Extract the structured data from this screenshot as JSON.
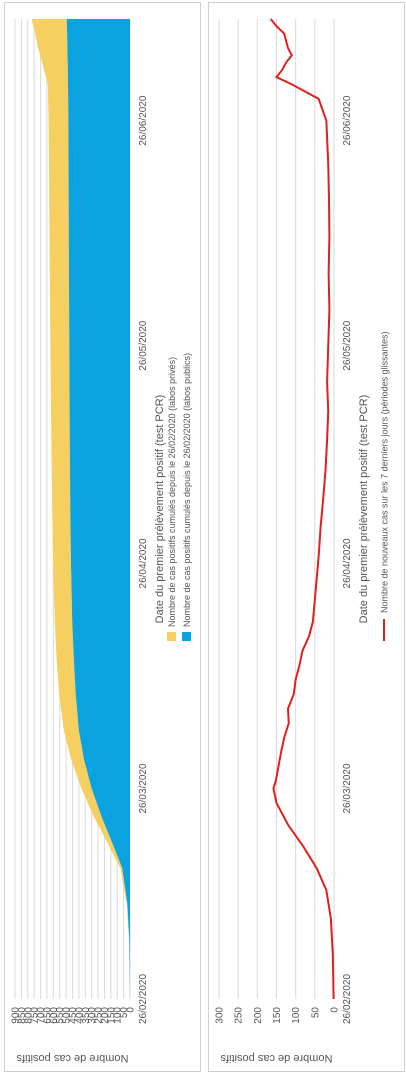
{
  "chart_data": [
    {
      "type": "area",
      "stacked": true,
      "xlabel": "Date du premier prélèvement positif (test PCR)",
      "ylabel": "Nombre de cas positifs",
      "x_ticks": [
        "26/02/2020",
        "26/03/2020",
        "26/04/2020",
        "26/05/2020",
        "26/06/2020"
      ],
      "x_range": [
        "2020-02-26",
        "2020-07-10"
      ],
      "ylim": [
        0,
        900
      ],
      "y_ticks": [
        0,
        50,
        100,
        150,
        200,
        250,
        300,
        350,
        400,
        450,
        500,
        550,
        600,
        650,
        700,
        750,
        800,
        850,
        900
      ],
      "grid": true,
      "legend_position": "bottom",
      "colors": {
        "prives": "#f5cf5f",
        "publics": "#0aa3e0"
      },
      "series": [
        {
          "name": "Nombre de cas positifs cumulés depuis le 26/02/2020 (labos privés)",
          "points": [
            [
              "2020-02-26",
              0
            ],
            [
              "2020-03-05",
              2
            ],
            [
              "2020-03-10",
              5
            ],
            [
              "2020-03-15",
              15
            ],
            [
              "2020-03-19",
              40
            ],
            [
              "2020-03-22",
              60
            ],
            [
              "2020-03-26",
              80
            ],
            [
              "2020-03-30",
              100
            ],
            [
              "2020-04-03",
              118
            ],
            [
              "2020-04-08",
              130
            ],
            [
              "2020-04-13",
              135
            ],
            [
              "2020-04-18",
              137
            ],
            [
              "2020-04-26",
              140
            ],
            [
              "2020-05-05",
              142
            ],
            [
              "2020-05-15",
              145
            ],
            [
              "2020-05-26",
              148
            ],
            [
              "2020-06-05",
              150
            ],
            [
              "2020-06-15",
              152
            ],
            [
              "2020-06-26",
              155
            ],
            [
              "2020-07-01",
              158
            ],
            [
              "2020-07-04",
              200
            ],
            [
              "2020-07-06",
              230
            ],
            [
              "2020-07-08",
              250
            ],
            [
              "2020-07-10",
              275
            ]
          ]
        },
        {
          "name": "Nombre de cas positifs cumulés depuis le 26/02/2020 (labos publics)",
          "points": [
            [
              "2020-02-26",
              0
            ],
            [
              "2020-03-05",
              5
            ],
            [
              "2020-03-10",
              20
            ],
            [
              "2020-03-15",
              60
            ],
            [
              "2020-03-19",
              150
            ],
            [
              "2020-03-22",
              220
            ],
            [
              "2020-03-26",
              300
            ],
            [
              "2020-03-30",
              360
            ],
            [
              "2020-04-03",
              400
            ],
            [
              "2020-04-08",
              425
            ],
            [
              "2020-04-13",
              440
            ],
            [
              "2020-04-18",
              452
            ],
            [
              "2020-04-26",
              462
            ],
            [
              "2020-05-05",
              468
            ],
            [
              "2020-05-15",
              472
            ],
            [
              "2020-05-26",
              475
            ],
            [
              "2020-06-05",
              478
            ],
            [
              "2020-06-15",
              480
            ],
            [
              "2020-06-26",
              482
            ],
            [
              "2020-07-01",
              485
            ],
            [
              "2020-07-04",
              488
            ],
            [
              "2020-07-06",
              490
            ],
            [
              "2020-07-08",
              492
            ],
            [
              "2020-07-10",
              495
            ]
          ]
        }
      ]
    },
    {
      "type": "line",
      "xlabel": "Date du premier prélèvement positif (test PCR)",
      "ylabel": "Nombre de cas positifs",
      "x_ticks": [
        "26/02/2020",
        "26/03/2020",
        "26/04/2020",
        "26/05/2020",
        "26/06/2020"
      ],
      "x_range": [
        "2020-02-26",
        "2020-07-10"
      ],
      "ylim": [
        0,
        300
      ],
      "y_ticks": [
        0,
        50,
        100,
        150,
        200,
        250,
        300
      ],
      "grid": true,
      "legend_position": "bottom",
      "colors": {
        "line": "#e0201c"
      },
      "series": [
        {
          "name": "Nombre de nouveaux cas sur les 7 derniers jours (périodes glissantes)",
          "points": [
            [
              "2020-02-26",
              1
            ],
            [
              "2020-03-03",
              3
            ],
            [
              "2020-03-08",
              8
            ],
            [
              "2020-03-12",
              20
            ],
            [
              "2020-03-15",
              45
            ],
            [
              "2020-03-18",
              80
            ],
            [
              "2020-03-21",
              120
            ],
            [
              "2020-03-24",
              150
            ],
            [
              "2020-03-26",
              158
            ],
            [
              "2020-03-27",
              152
            ],
            [
              "2020-03-29",
              145
            ],
            [
              "2020-03-31",
              138
            ],
            [
              "2020-04-02",
              130
            ],
            [
              "2020-04-04",
              118
            ],
            [
              "2020-04-06",
              120
            ],
            [
              "2020-04-08",
              105
            ],
            [
              "2020-04-10",
              100
            ],
            [
              "2020-04-12",
              90
            ],
            [
              "2020-04-14",
              82
            ],
            [
              "2020-04-16",
              65
            ],
            [
              "2020-04-18",
              55
            ],
            [
              "2020-04-21",
              50
            ],
            [
              "2020-04-24",
              45
            ],
            [
              "2020-04-27",
              40
            ],
            [
              "2020-05-01",
              35
            ],
            [
              "2020-05-05",
              28
            ],
            [
              "2020-05-09",
              22
            ],
            [
              "2020-05-13",
              18
            ],
            [
              "2020-05-17",
              15
            ],
            [
              "2020-05-21",
              18
            ],
            [
              "2020-05-26",
              15
            ],
            [
              "2020-05-31",
              12
            ],
            [
              "2020-06-05",
              14
            ],
            [
              "2020-06-10",
              12
            ],
            [
              "2020-06-15",
              13
            ],
            [
              "2020-06-20",
              15
            ],
            [
              "2020-06-26",
              20
            ],
            [
              "2020-06-29",
              40
            ],
            [
              "2020-07-01",
              110
            ],
            [
              "2020-07-02",
              150
            ],
            [
              "2020-07-03",
              135
            ],
            [
              "2020-07-04",
              125
            ],
            [
              "2020-07-05",
              110
            ],
            [
              "2020-07-06",
              120
            ],
            [
              "2020-07-07",
              125
            ],
            [
              "2020-07-08",
              130
            ],
            [
              "2020-07-09",
              150
            ],
            [
              "2020-07-10",
              165
            ]
          ]
        }
      ]
    }
  ]
}
